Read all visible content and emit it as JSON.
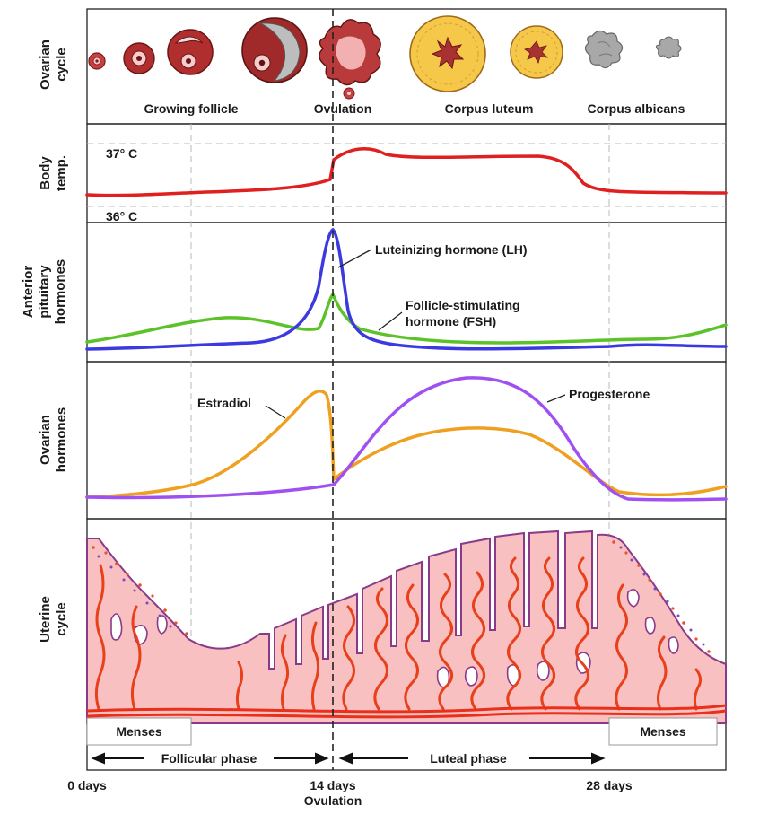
{
  "panels": {
    "ovarian": "Ovarian\ncycle",
    "body_temp": "Body\ntemp.",
    "pituitary": "Anterior\npituitary\nhormones",
    "ovarian_hormones": "Ovarian\nhormones",
    "uterine": "Uterine\ncycle"
  },
  "ovarian_stages": {
    "growing": "Growing follicle",
    "ovulation": "Ovulation",
    "luteum": "Corpus luteum",
    "albicans": "Corpus albicans"
  },
  "temperature": {
    "high": "37° C",
    "low": "36° C"
  },
  "hormones": {
    "lh": "Luteinizing hormone (LH)",
    "fsh_line1": "Follicle-stimulating",
    "fsh_line2": "hormone (FSH)",
    "estradiol": "Estradiol",
    "progesterone": "Progesterone"
  },
  "phases": {
    "menses_left": "Menses",
    "menses_right": "Menses",
    "follicular": "Follicular phase",
    "luteal": "Luteal phase"
  },
  "axis": {
    "day0": "0 days",
    "day14": "14 days",
    "day14_sub": "Ovulation",
    "day28": "28 days"
  },
  "colors": {
    "temp": "#e02020",
    "lh": "#3a3ae0",
    "fsh": "#5cc22a",
    "estradiol": "#f0a020",
    "progesterone": "#a050f0",
    "follicle": "#b23030",
    "luteum": "#f5c84a",
    "albicans": "#a8a8a8",
    "endometrium": "#f8c0c0",
    "endometrium_edge": "#8a3a8a",
    "vessel": "#e8401a"
  }
}
